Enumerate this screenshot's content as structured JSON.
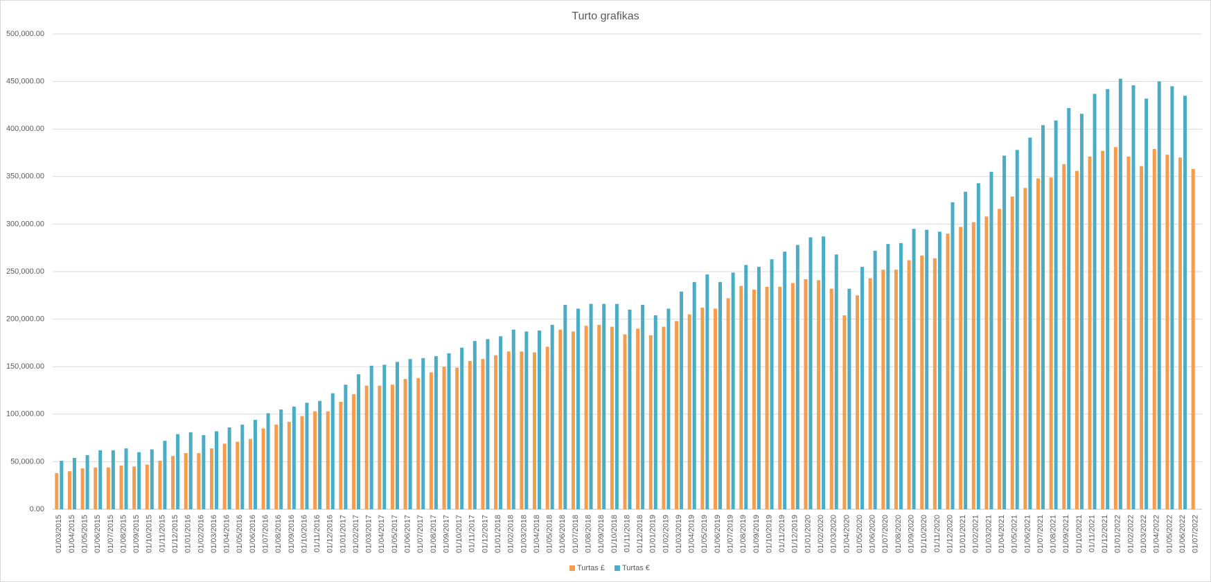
{
  "chart_data": {
    "type": "bar",
    "title": "Turto grafikas",
    "categories": [
      "01/03/2015",
      "01/04/2015",
      "01/05/2015",
      "01/06/2015",
      "01/07/2015",
      "01/08/2015",
      "01/09/2015",
      "01/10/2015",
      "01/11/2015",
      "01/12/2015",
      "01/01/2016",
      "01/02/2016",
      "01/03/2016",
      "01/04/2016",
      "01/05/2016",
      "01/06/2016",
      "01/07/2016",
      "01/08/2016",
      "01/09/2016",
      "01/10/2016",
      "01/11/2016",
      "01/12/2016",
      "01/01/2017",
      "01/02/2017",
      "01/03/2017",
      "01/04/2017",
      "01/05/2017",
      "01/06/2017",
      "01/07/2017",
      "01/08/2017",
      "01/09/2017",
      "01/10/2017",
      "01/11/2017",
      "01/12/2017",
      "01/01/2018",
      "01/02/2018",
      "01/03/2018",
      "01/04/2018",
      "01/05/2018",
      "01/06/2018",
      "01/07/2018",
      "01/08/2018",
      "01/09/2018",
      "01/10/2018",
      "01/11/2018",
      "01/12/2018",
      "01/01/2019",
      "01/02/2019",
      "01/03/2019",
      "01/04/2019",
      "01/05/2019",
      "01/06/2019",
      "01/07/2019",
      "01/08/2019",
      "01/09/2019",
      "01/10/2019",
      "01/11/2019",
      "01/12/2019",
      "01/01/2020",
      "01/02/2020",
      "01/03/2020",
      "01/04/2020",
      "01/05/2020",
      "01/06/2020",
      "01/07/2020",
      "01/08/2020",
      "01/09/2020",
      "01/10/2020",
      "01/11/2020",
      "01/12/2020",
      "01/01/2021",
      "01/02/2021",
      "01/03/2021",
      "01/04/2021",
      "01/05/2021",
      "01/06/2021",
      "01/07/2021",
      "01/08/2021",
      "01/09/2021",
      "01/10/2021",
      "01/11/2021",
      "01/12/2021",
      "01/01/2022",
      "01/02/2022",
      "01/03/2022",
      "01/04/2022",
      "01/05/2022",
      "01/06/2022",
      "01/07/2022"
    ],
    "series": [
      {
        "name": "Turtas £",
        "color": "#f59d4f",
        "values": [
          38000,
          40000,
          43000,
          44000,
          44000,
          46000,
          45000,
          47000,
          51000,
          56000,
          59000,
          59000,
          64000,
          69000,
          71000,
          74000,
          85000,
          89000,
          92000,
          98000,
          103000,
          103000,
          113000,
          121000,
          130000,
          130000,
          131000,
          137000,
          138000,
          144000,
          150000,
          149000,
          156000,
          158000,
          162000,
          166000,
          166000,
          165000,
          171000,
          189000,
          187000,
          193000,
          194000,
          192000,
          184000,
          190000,
          183000,
          192000,
          198000,
          205000,
          212000,
          211000,
          222000,
          235000,
          231000,
          234000,
          234000,
          238000,
          242000,
          241000,
          232000,
          204000,
          225000,
          243000,
          252000,
          252000,
          262000,
          267000,
          264000,
          290000,
          297000,
          302000,
          308000,
          316000,
          329000,
          338000,
          348000,
          349000,
          363000,
          356000,
          371000,
          377000,
          381000,
          371000,
          361000,
          379000,
          373000,
          370000,
          358000
        ]
      },
      {
        "name": "Turtas €",
        "color": "#4bacc6",
        "values": [
          51000,
          54000,
          57000,
          62000,
          62000,
          64000,
          60000,
          63000,
          72000,
          79000,
          81000,
          78000,
          82000,
          86000,
          89000,
          94000,
          101000,
          105000,
          108000,
          112000,
          114000,
          122000,
          131000,
          142000,
          151000,
          152000,
          155000,
          158000,
          159000,
          161000,
          164000,
          170000,
          177000,
          179000,
          182000,
          189000,
          187000,
          188000,
          194000,
          215000,
          211000,
          216000,
          216000,
          216000,
          210000,
          215000,
          204000,
          211000,
          229000,
          239000,
          247000,
          239000,
          249000,
          257000,
          255000,
          263000,
          271000,
          278000,
          286000,
          287000,
          268000,
          232000,
          255000,
          272000,
          279000,
          280000,
          295000,
          294000,
          292000,
          323000,
          334000,
          343000,
          355000,
          372000,
          378000,
          391000,
          404000,
          409000,
          422000,
          416000,
          437000,
          442000,
          453000,
          446000,
          432000,
          450000,
          445000,
          435000,
          null
        ]
      }
    ],
    "ylim": [
      0,
      500000
    ],
    "yticks": [
      {
        "value": 0,
        "label": "0.00"
      },
      {
        "value": 50000,
        "label": "50,000.00"
      },
      {
        "value": 100000,
        "label": "100,000.00"
      },
      {
        "value": 150000,
        "label": "150,000.00"
      },
      {
        "value": 200000,
        "label": "200,000.00"
      },
      {
        "value": 250000,
        "label": "250,000.00"
      },
      {
        "value": 300000,
        "label": "300,000.00"
      },
      {
        "value": 350000,
        "label": "350,000.00"
      },
      {
        "value": 400000,
        "label": "400,000.00"
      },
      {
        "value": 450000,
        "label": "450,000.00"
      },
      {
        "value": 500000,
        "label": "500,000.00"
      }
    ],
    "grid": true,
    "legend": "bottom"
  }
}
